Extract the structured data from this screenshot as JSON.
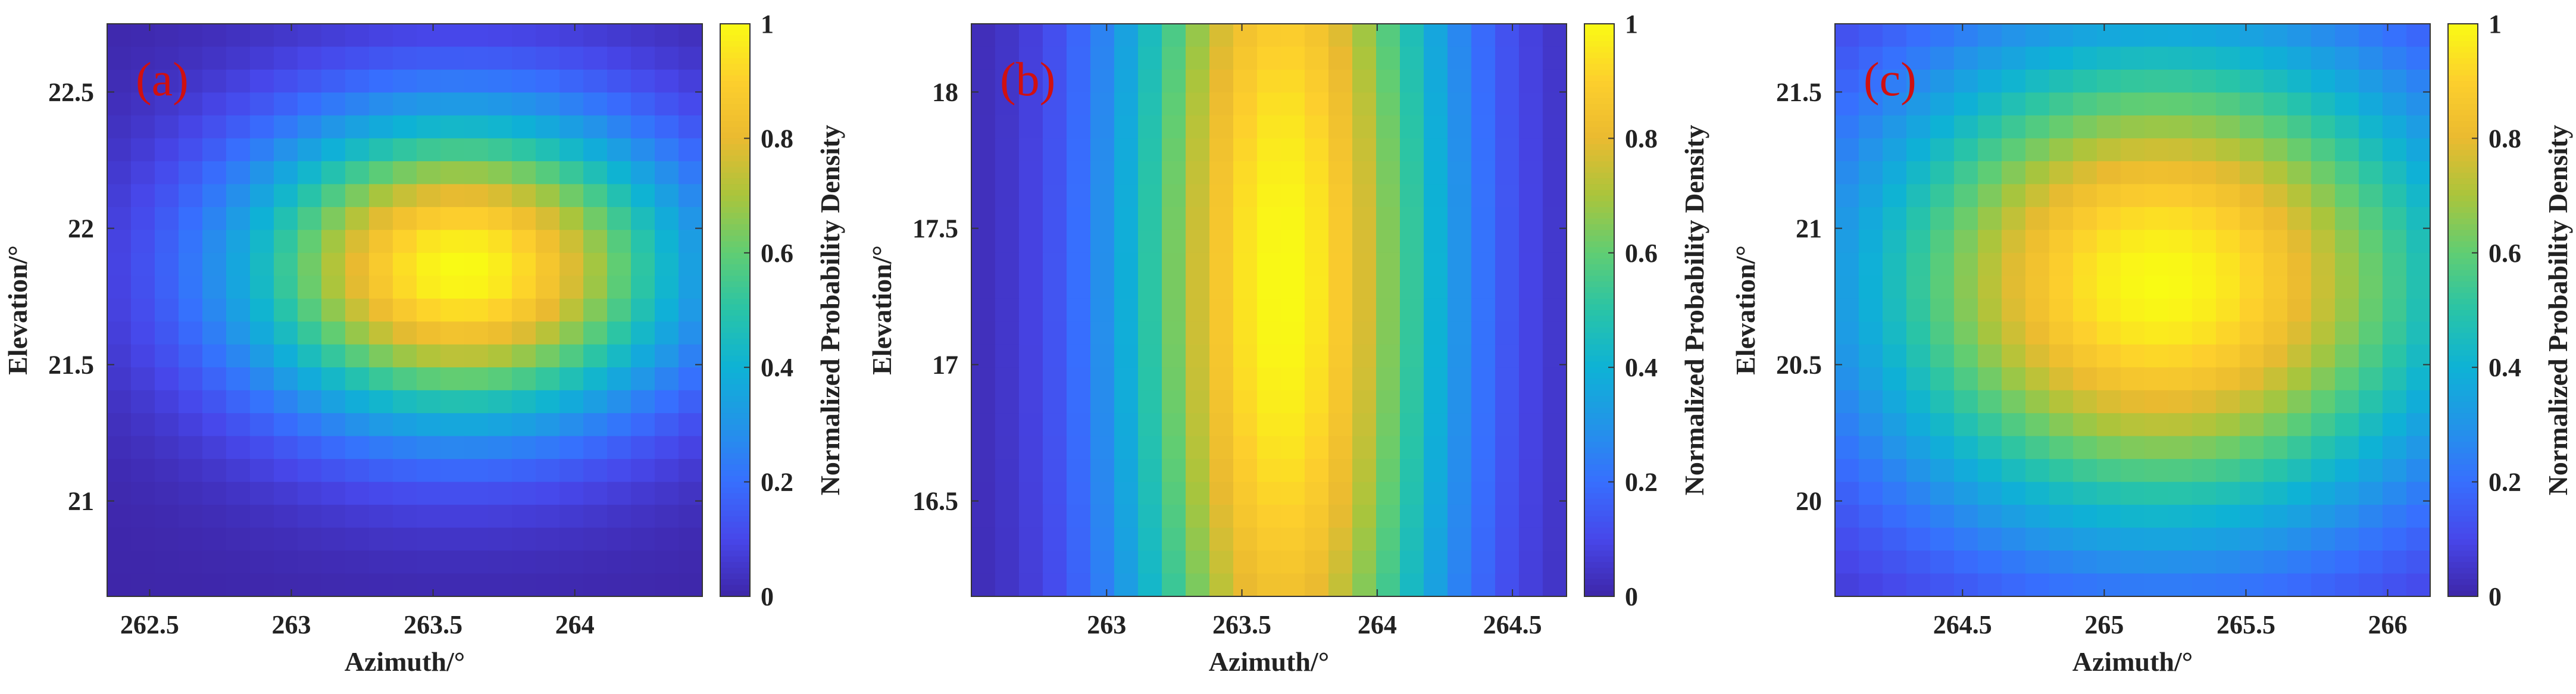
{
  "figure_panels": 3,
  "chart_data": [
    {
      "type": "heatmap",
      "panel_label": "(a)",
      "xlabel": "Azimuth/°",
      "ylabel": "Elevation/°",
      "xlim": [
        262.35,
        264.45
      ],
      "ylim": [
        20.65,
        22.75
      ],
      "xticks": [
        262.5,
        263,
        263.5,
        264
      ],
      "xtick_labels": [
        "262.5",
        "263",
        "263.5",
        "264"
      ],
      "yticks": [
        21,
        21.5,
        22,
        22.5
      ],
      "ytick_labels": [
        "21",
        "21.5",
        "22",
        "22.5"
      ],
      "grid_cols": 25,
      "grid_rows": 25,
      "peak": {
        "azimuth": 263.6,
        "elevation": 21.85
      },
      "spread": {
        "azimuth": 0.55,
        "elevation": 0.4
      },
      "correlation": 0.0,
      "colorbar": {
        "label": "Normalized Probability Density",
        "min": 0,
        "max": 1,
        "ticks": [
          0,
          0.2,
          0.4,
          0.6,
          0.8,
          1
        ],
        "tick_labels": [
          "0",
          "0.2",
          "0.4",
          "0.6",
          "0.8",
          "1"
        ]
      }
    },
    {
      "type": "heatmap",
      "panel_label": "(b)",
      "xlabel": "Azimuth/°",
      "ylabel": "Elevation/°",
      "xlim": [
        262.5,
        264.7
      ],
      "ylim": [
        16.15,
        18.25
      ],
      "xticks": [
        263,
        263.5,
        264,
        264.5
      ],
      "xtick_labels": [
        "263",
        "263.5",
        "264",
        "264.5"
      ],
      "yticks": [
        16.5,
        17,
        17.5,
        18
      ],
      "ytick_labels": [
        "16.5",
        "17",
        "17.5",
        "18"
      ],
      "grid_cols": 25,
      "grid_rows": 25,
      "peak": {
        "azimuth": 263.65,
        "elevation": 17.3
      },
      "spread": {
        "azimuth": 0.42,
        "elevation": 1.9
      },
      "correlation": 0.0,
      "colorbar": {
        "label": "Normalized Probability Density",
        "min": 0,
        "max": 1,
        "ticks": [
          0,
          0.2,
          0.4,
          0.6,
          0.8,
          1
        ],
        "tick_labels": [
          "0",
          "0.2",
          "0.4",
          "0.6",
          "0.8",
          "1"
        ]
      }
    },
    {
      "type": "heatmap",
      "panel_label": "(c)",
      "xlabel": "Azimuth/°",
      "ylabel": "Elevation/°",
      "xlim": [
        264.05,
        266.15
      ],
      "ylim": [
        19.65,
        21.75
      ],
      "xticks": [
        264.5,
        265,
        265.5,
        266
      ],
      "xtick_labels": [
        "264.5",
        "265",
        "265.5",
        "266"
      ],
      "yticks": [
        20,
        20.5,
        21,
        21.5
      ],
      "ytick_labels": [
        "20",
        "20.5",
        "21",
        "21.5"
      ],
      "grid_cols": 25,
      "grid_rows": 25,
      "peak": {
        "azimuth": 265.2,
        "elevation": 20.8
      },
      "spread": {
        "azimuth": 0.75,
        "elevation": 0.65
      },
      "correlation": 0.0,
      "colorbar": {
        "label": "Normalized Probability Density",
        "min": 0,
        "max": 1,
        "ticks": [
          0,
          0.2,
          0.4,
          0.6,
          0.8,
          1
        ],
        "tick_labels": [
          "0",
          "0.2",
          "0.4",
          "0.6",
          "0.8",
          "1"
        ]
      }
    }
  ]
}
